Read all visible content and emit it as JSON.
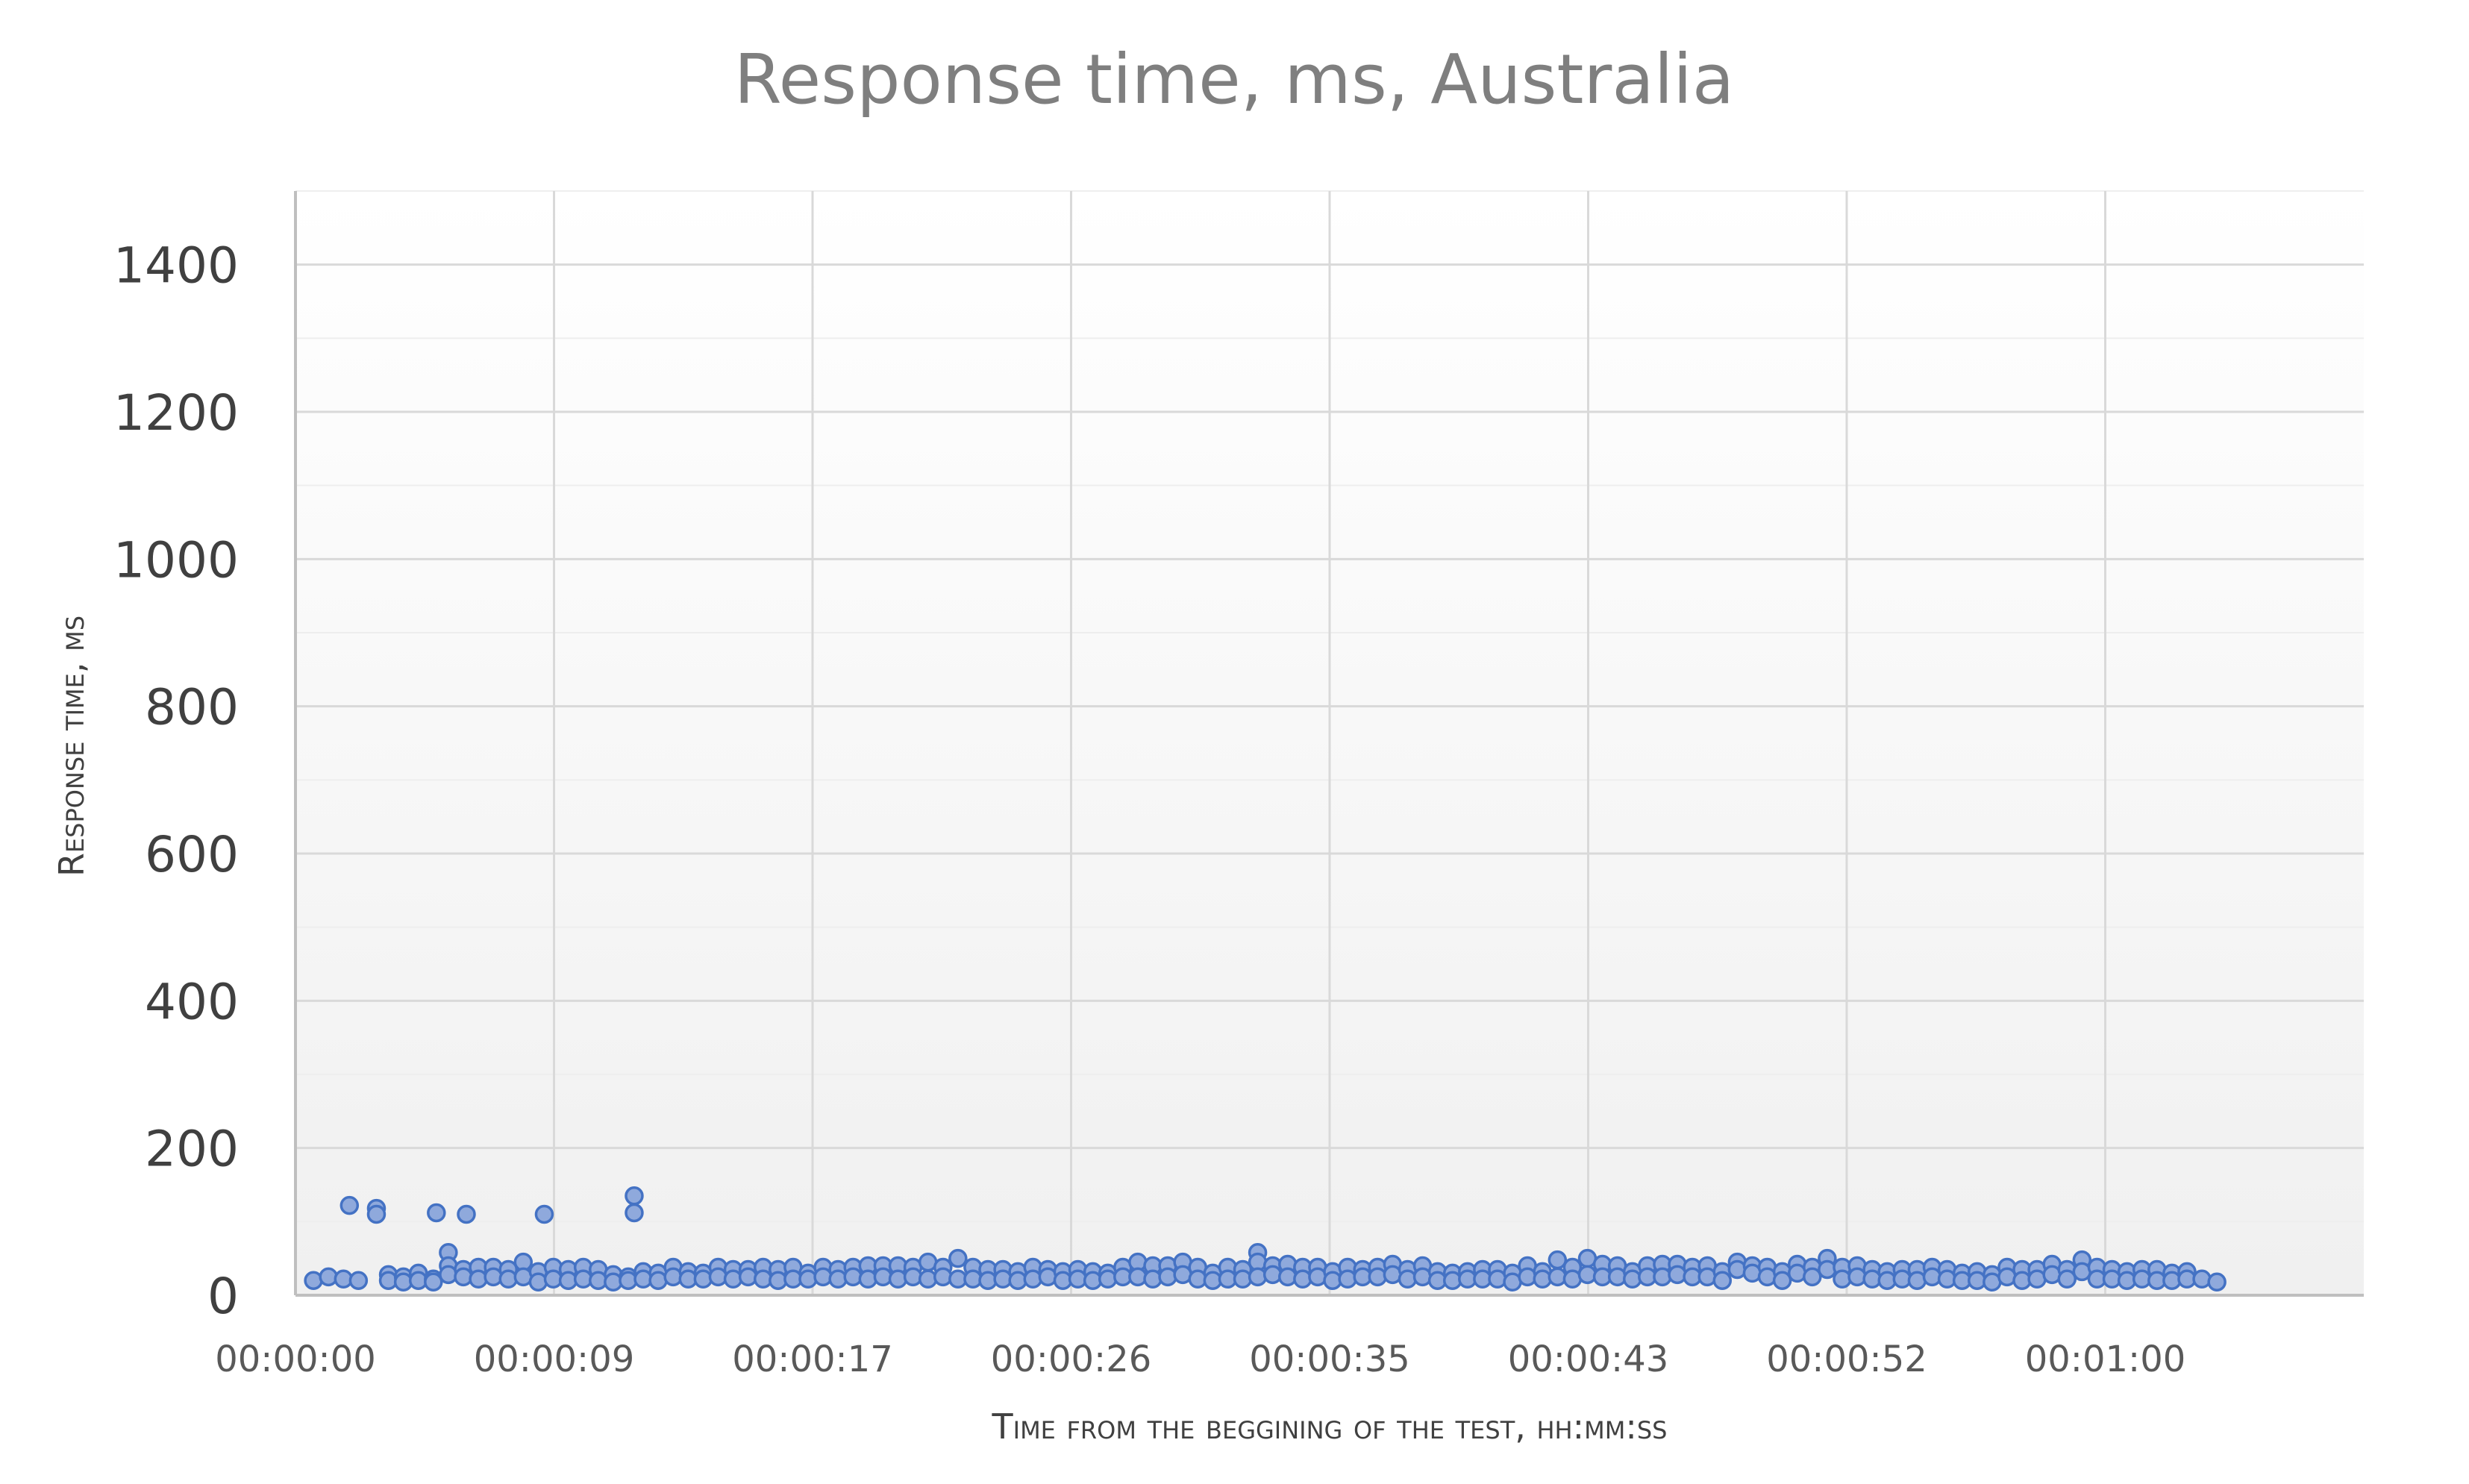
{
  "chart_data": {
    "type": "scatter",
    "title": "Response time, ms, Australia",
    "xlabel": "Time from the beggining of the test, hh:mm:ss",
    "ylabel": "Response time, ms",
    "ylim": [
      0,
      1500
    ],
    "yticks": [
      0,
      200,
      400,
      600,
      800,
      1000,
      1200,
      1400
    ],
    "xlim_seconds": [
      0,
      69
    ],
    "xticks": [
      {
        "label": "00:00:00",
        "seconds": 0
      },
      {
        "label": "00:00:09",
        "seconds": 8.625
      },
      {
        "label": "00:00:17",
        "seconds": 17.25
      },
      {
        "label": "00:00:26",
        "seconds": 25.875
      },
      {
        "label": "00:00:35",
        "seconds": 34.5
      },
      {
        "label": "00:00:43",
        "seconds": 43.125
      },
      {
        "label": "00:00:52",
        "seconds": 51.75
      },
      {
        "label": "00:01:00",
        "seconds": 60.375
      }
    ],
    "grid": true,
    "series": [
      {
        "marker_color": "#8fa9dc",
        "edge_color": "#4472c4",
        "points": [
          [
            0.6,
            20
          ],
          [
            1.1,
            25
          ],
          [
            1.6,
            22
          ],
          [
            2.1,
            20
          ],
          [
            1.8,
            122
          ],
          [
            2.7,
            118
          ],
          [
            2.7,
            110
          ],
          [
            4.7,
            112
          ],
          [
            5.7,
            110
          ],
          [
            8.3,
            110
          ],
          [
            11.3,
            135
          ],
          [
            11.3,
            112
          ],
          [
            3.1,
            28
          ],
          [
            3.1,
            20
          ],
          [
            3.6,
            25
          ],
          [
            3.6,
            18
          ],
          [
            4.1,
            30
          ],
          [
            4.1,
            20
          ],
          [
            4.6,
            22
          ],
          [
            4.6,
            18
          ],
          [
            5.1,
            58
          ],
          [
            5.1,
            40
          ],
          [
            5.1,
            28
          ],
          [
            5.6,
            35
          ],
          [
            5.6,
            25
          ],
          [
            6.1,
            38
          ],
          [
            6.1,
            22
          ],
          [
            6.6,
            38
          ],
          [
            6.6,
            25
          ],
          [
            7.1,
            35
          ],
          [
            7.1,
            22
          ],
          [
            7.6,
            45
          ],
          [
            7.6,
            25
          ],
          [
            8.1,
            32
          ],
          [
            8.1,
            18
          ],
          [
            8.6,
            38
          ],
          [
            8.6,
            22
          ],
          [
            9.1,
            35
          ],
          [
            9.1,
            20
          ],
          [
            9.6,
            38
          ],
          [
            9.6,
            22
          ],
          [
            10.1,
            35
          ],
          [
            10.1,
            20
          ],
          [
            10.6,
            28
          ],
          [
            10.6,
            18
          ],
          [
            11.1,
            25
          ],
          [
            11.1,
            20
          ],
          [
            11.6,
            32
          ],
          [
            11.6,
            22
          ],
          [
            12.1,
            30
          ],
          [
            12.1,
            20
          ],
          [
            12.6,
            38
          ],
          [
            12.6,
            25
          ],
          [
            13.1,
            32
          ],
          [
            13.1,
            22
          ],
          [
            13.6,
            30
          ],
          [
            13.6,
            22
          ],
          [
            14.1,
            38
          ],
          [
            14.1,
            25
          ],
          [
            14.6,
            35
          ],
          [
            14.6,
            22
          ],
          [
            15.1,
            35
          ],
          [
            15.1,
            25
          ],
          [
            15.6,
            38
          ],
          [
            15.6,
            22
          ],
          [
            16.1,
            35
          ],
          [
            16.1,
            20
          ],
          [
            16.6,
            38
          ],
          [
            16.6,
            22
          ],
          [
            17.1,
            30
          ],
          [
            17.1,
            22
          ],
          [
            17.6,
            38
          ],
          [
            17.6,
            25
          ],
          [
            18.1,
            35
          ],
          [
            18.1,
            22
          ],
          [
            18.6,
            38
          ],
          [
            18.6,
            25
          ],
          [
            19.1,
            40
          ],
          [
            19.1,
            22
          ],
          [
            19.6,
            40
          ],
          [
            19.6,
            25
          ],
          [
            20.1,
            40
          ],
          [
            20.1,
            22
          ],
          [
            20.6,
            38
          ],
          [
            20.6,
            25
          ],
          [
            21.1,
            45
          ],
          [
            21.1,
            22
          ],
          [
            21.6,
            38
          ],
          [
            21.6,
            25
          ],
          [
            22.1,
            50
          ],
          [
            22.1,
            22
          ],
          [
            22.6,
            38
          ],
          [
            22.6,
            22
          ],
          [
            23.1,
            35
          ],
          [
            23.1,
            20
          ],
          [
            23.6,
            35
          ],
          [
            23.6,
            22
          ],
          [
            24.1,
            32
          ],
          [
            24.1,
            20
          ],
          [
            24.6,
            38
          ],
          [
            24.6,
            22
          ],
          [
            25.1,
            35
          ],
          [
            25.1,
            25
          ],
          [
            25.6,
            32
          ],
          [
            25.6,
            20
          ],
          [
            26.1,
            35
          ],
          [
            26.1,
            22
          ],
          [
            26.6,
            32
          ],
          [
            26.6,
            20
          ],
          [
            27.1,
            30
          ],
          [
            27.1,
            22
          ],
          [
            27.6,
            38
          ],
          [
            27.6,
            25
          ],
          [
            28.1,
            45
          ],
          [
            28.1,
            25
          ],
          [
            28.6,
            40
          ],
          [
            28.6,
            22
          ],
          [
            29.1,
            40
          ],
          [
            29.1,
            25
          ],
          [
            29.6,
            45
          ],
          [
            29.6,
            28
          ],
          [
            30.1,
            38
          ],
          [
            30.1,
            22
          ],
          [
            30.6,
            30
          ],
          [
            30.6,
            20
          ],
          [
            31.1,
            38
          ],
          [
            31.1,
            22
          ],
          [
            31.6,
            35
          ],
          [
            31.6,
            22
          ],
          [
            32.1,
            58
          ],
          [
            32.1,
            45
          ],
          [
            32.1,
            25
          ],
          [
            32.6,
            40
          ],
          [
            32.6,
            28
          ],
          [
            33.1,
            42
          ],
          [
            33.1,
            25
          ],
          [
            33.6,
            38
          ],
          [
            33.6,
            22
          ],
          [
            34.1,
            38
          ],
          [
            34.1,
            25
          ],
          [
            34.6,
            32
          ],
          [
            34.6,
            20
          ],
          [
            35.1,
            38
          ],
          [
            35.1,
            22
          ],
          [
            35.6,
            35
          ],
          [
            35.6,
            25
          ],
          [
            36.1,
            38
          ],
          [
            36.1,
            25
          ],
          [
            36.6,
            42
          ],
          [
            36.6,
            28
          ],
          [
            37.1,
            35
          ],
          [
            37.1,
            22
          ],
          [
            37.6,
            40
          ],
          [
            37.6,
            25
          ],
          [
            38.1,
            32
          ],
          [
            38.1,
            20
          ],
          [
            38.6,
            30
          ],
          [
            38.6,
            20
          ],
          [
            39.1,
            32
          ],
          [
            39.1,
            22
          ],
          [
            39.6,
            35
          ],
          [
            39.6,
            22
          ],
          [
            40.1,
            35
          ],
          [
            40.1,
            22
          ],
          [
            40.6,
            30
          ],
          [
            40.6,
            18
          ],
          [
            41.1,
            40
          ],
          [
            41.1,
            25
          ],
          [
            41.6,
            32
          ],
          [
            41.6,
            22
          ],
          [
            42.1,
            48
          ],
          [
            42.1,
            25
          ],
          [
            42.6,
            38
          ],
          [
            42.6,
            22
          ],
          [
            43.1,
            50
          ],
          [
            43.1,
            28
          ],
          [
            43.6,
            42
          ],
          [
            43.6,
            25
          ],
          [
            44.1,
            40
          ],
          [
            44.1,
            25
          ],
          [
            44.6,
            32
          ],
          [
            44.6,
            22
          ],
          [
            45.1,
            40
          ],
          [
            45.1,
            25
          ],
          [
            45.6,
            42
          ],
          [
            45.6,
            25
          ],
          [
            46.1,
            42
          ],
          [
            46.1,
            28
          ],
          [
            46.6,
            38
          ],
          [
            46.6,
            25
          ],
          [
            47.1,
            40
          ],
          [
            47.1,
            25
          ],
          [
            47.6,
            32
          ],
          [
            47.6,
            20
          ],
          [
            48.1,
            45
          ],
          [
            48.1,
            35
          ],
          [
            48.6,
            40
          ],
          [
            48.6,
            30
          ],
          [
            49.1,
            38
          ],
          [
            49.1,
            25
          ],
          [
            49.6,
            32
          ],
          [
            49.6,
            20
          ],
          [
            50.1,
            42
          ],
          [
            50.1,
            30
          ],
          [
            50.6,
            38
          ],
          [
            50.6,
            25
          ],
          [
            51.1,
            50
          ],
          [
            51.1,
            35
          ],
          [
            51.6,
            38
          ],
          [
            51.6,
            22
          ],
          [
            52.1,
            40
          ],
          [
            52.1,
            25
          ],
          [
            52.6,
            35
          ],
          [
            52.6,
            22
          ],
          [
            53.1,
            32
          ],
          [
            53.1,
            20
          ],
          [
            53.6,
            35
          ],
          [
            53.6,
            22
          ],
          [
            54.1,
            35
          ],
          [
            54.1,
            20
          ],
          [
            54.6,
            38
          ],
          [
            54.6,
            25
          ],
          [
            55.1,
            35
          ],
          [
            55.1,
            22
          ],
          [
            55.6,
            30
          ],
          [
            55.6,
            20
          ],
          [
            56.1,
            32
          ],
          [
            56.1,
            20
          ],
          [
            56.6,
            28
          ],
          [
            56.6,
            18
          ],
          [
            57.1,
            38
          ],
          [
            57.1,
            25
          ],
          [
            57.6,
            35
          ],
          [
            57.6,
            20
          ],
          [
            58.1,
            35
          ],
          [
            58.1,
            22
          ],
          [
            58.6,
            42
          ],
          [
            58.6,
            28
          ],
          [
            59.1,
            35
          ],
          [
            59.1,
            22
          ],
          [
            59.6,
            48
          ],
          [
            59.6,
            32
          ],
          [
            60.1,
            38
          ],
          [
            60.1,
            22
          ],
          [
            60.6,
            35
          ],
          [
            60.6,
            22
          ],
          [
            61.1,
            32
          ],
          [
            61.1,
            20
          ],
          [
            61.6,
            35
          ],
          [
            61.6,
            22
          ],
          [
            62.1,
            35
          ],
          [
            62.1,
            20
          ],
          [
            62.6,
            30
          ],
          [
            62.6,
            20
          ],
          [
            63.1,
            32
          ],
          [
            63.1,
            22
          ],
          [
            63.6,
            22
          ],
          [
            64.1,
            18
          ]
        ]
      }
    ]
  }
}
